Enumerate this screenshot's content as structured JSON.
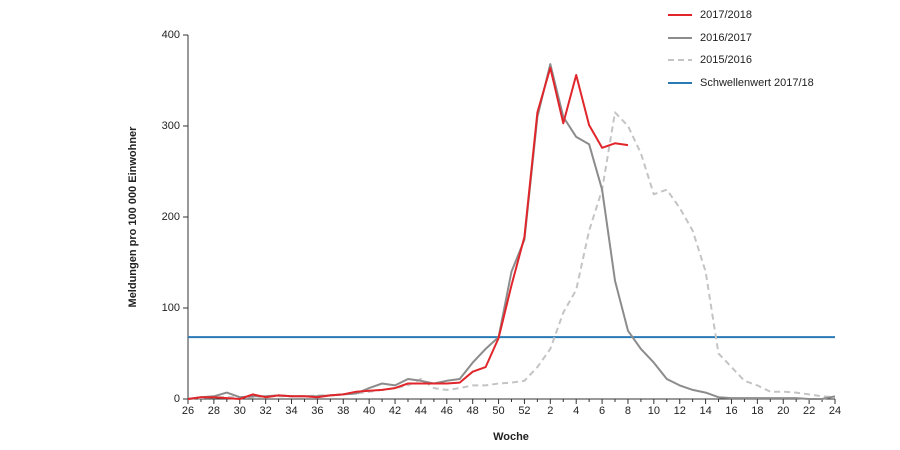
{
  "chart_data": {
    "type": "line",
    "y_label": "Meldungen pro 100 000 Einwohner",
    "x_label": "Woche",
    "categories": [
      "26",
      null,
      "28",
      null,
      "30",
      null,
      "32",
      null,
      "34",
      null,
      "36",
      null,
      "38",
      null,
      "40",
      null,
      "42",
      null,
      "44",
      null,
      "46",
      null,
      "48",
      null,
      "50",
      null,
      "52",
      null,
      "2",
      null,
      "4",
      null,
      "6",
      null,
      "8",
      null,
      "10",
      null,
      "12",
      null,
      "14",
      null,
      "16",
      null,
      "18",
      null,
      "20",
      null,
      "22",
      null,
      "24"
    ],
    "series": [
      {
        "name": "2017/2018",
        "color": "#e0262b",
        "dash": false,
        "values": [
          0,
          2,
          2,
          1,
          0,
          5,
          2,
          4,
          3,
          3,
          2,
          4,
          5,
          8,
          9,
          10,
          12,
          17,
          17,
          17,
          17,
          18,
          30,
          35,
          67,
          125,
          178,
          315,
          364,
          303,
          356,
          301,
          276,
          281,
          279,
          null,
          null,
          null,
          null,
          null,
          null,
          null,
          null,
          null,
          null,
          null,
          null,
          null,
          null,
          null,
          null
        ]
      },
      {
        "name": "2016/2017",
        "color": "#8c8c8c",
        "dash": false,
        "values": [
          0,
          2,
          3,
          7,
          2,
          3,
          3,
          4,
          3,
          3,
          3,
          4,
          5,
          6,
          12,
          17,
          15,
          22,
          20,
          17,
          20,
          22,
          40,
          55,
          68,
          140,
          175,
          310,
          368,
          310,
          288,
          280,
          230,
          130,
          75,
          55,
          40,
          22,
          15,
          10,
          7,
          2,
          1,
          1,
          1,
          1,
          1,
          1,
          0,
          0,
          3
        ]
      },
      {
        "name": "2015/2016",
        "color": "#c4c4c4",
        "dash": true,
        "values": [
          0,
          1,
          2,
          2,
          2,
          2,
          3,
          3,
          3,
          3,
          4,
          4,
          5,
          6,
          8,
          10,
          12,
          15,
          22,
          12,
          10,
          12,
          15,
          15,
          17,
          18,
          20,
          35,
          55,
          95,
          120,
          185,
          230,
          315,
          300,
          270,
          225,
          230,
          210,
          185,
          140,
          50,
          35,
          20,
          15,
          8,
          8,
          7,
          5,
          3,
          2
        ]
      }
    ],
    "threshold": {
      "name": "Schwellenwert 2017/18",
      "color": "#2a7ab5",
      "value": 68
    },
    "ylim": [
      0,
      400
    ],
    "yticks": [
      0,
      100,
      200,
      300,
      400
    ]
  }
}
